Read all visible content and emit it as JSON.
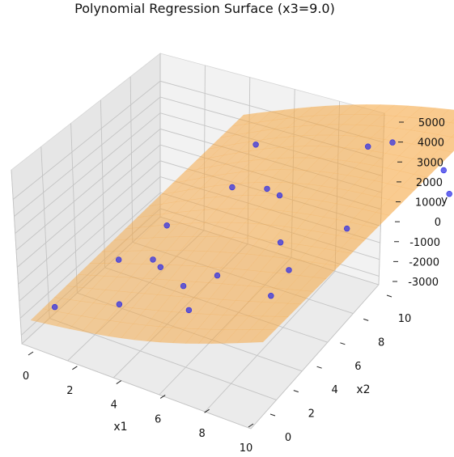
{
  "chart_data": {
    "type": "surface3d",
    "title": "Polynomial Regression Surface (x3=9.0)",
    "xlabel": "x1",
    "ylabel": "x2",
    "zlabel": "y",
    "xlim": [
      0,
      10
    ],
    "ylim": [
      0,
      10
    ],
    "zlim": [
      -3000,
      5000
    ],
    "x_ticks": [
      "0",
      "2",
      "4",
      "6",
      "8",
      "10"
    ],
    "y_ticks": [
      "0",
      "2",
      "4",
      "6",
      "8",
      "10"
    ],
    "z_ticks": [
      "-3000",
      "-2000",
      "-1000",
      "0",
      "1000",
      "2000",
      "3000",
      "4000",
      "5000"
    ],
    "grid": true,
    "surface_color": "#f5a742",
    "point_color": "#2a2ae6",
    "surface_corners": [
      {
        "x1": 0,
        "x2": 0,
        "y": -1800
      },
      {
        "x1": 10,
        "x2": 0,
        "y": 1000
      },
      {
        "x1": 0,
        "x2": 10,
        "y": -200
      },
      {
        "x1": 10,
        "x2": 10,
        "y": 3000
      }
    ],
    "points": [
      {
        "x1": 0.3,
        "x2": 0.8,
        "y": -1700
      },
      {
        "x1": 1.2,
        "x2": 2.8,
        "y": -800
      },
      {
        "x1": 2.6,
        "x2": 1.3,
        "y": -1100
      },
      {
        "x1": 2.1,
        "x2": 3.4,
        "y": -900
      },
      {
        "x1": 2.6,
        "x2": 3.2,
        "y": -900
      },
      {
        "x1": 1.6,
        "x2": 4.6,
        "y": -500
      },
      {
        "x1": 4.4,
        "x2": 2.3,
        "y": -400
      },
      {
        "x1": 5.1,
        "x2": 1.8,
        "y": -800
      },
      {
        "x1": 5.0,
        "x2": 3.2,
        "y": -400
      },
      {
        "x1": 2.7,
        "x2": 6.4,
        "y": 200
      },
      {
        "x1": 2.6,
        "x2": 7.6,
        "y": 1100
      },
      {
        "x1": 4.3,
        "x2": 6.8,
        "y": 100
      },
      {
        "x1": 3.6,
        "x2": 7.0,
        "y": 0
      },
      {
        "x1": 5.8,
        "x2": 5.2,
        "y": -200
      },
      {
        "x1": 6.7,
        "x2": 3.8,
        "y": -1100
      },
      {
        "x1": 6.8,
        "x2": 4.5,
        "y": -500
      },
      {
        "x1": 8.1,
        "x2": 5.7,
        "y": 800
      },
      {
        "x1": 6.3,
        "x2": 8.6,
        "y": 1500
      },
      {
        "x1": 7.3,
        "x2": 8.6,
        "y": 2000
      },
      {
        "x1": 9.9,
        "x2": 8.3,
        "y": 900
      },
      {
        "x1": 9.3,
        "x2": 8.7,
        "y": 1400
      }
    ]
  }
}
